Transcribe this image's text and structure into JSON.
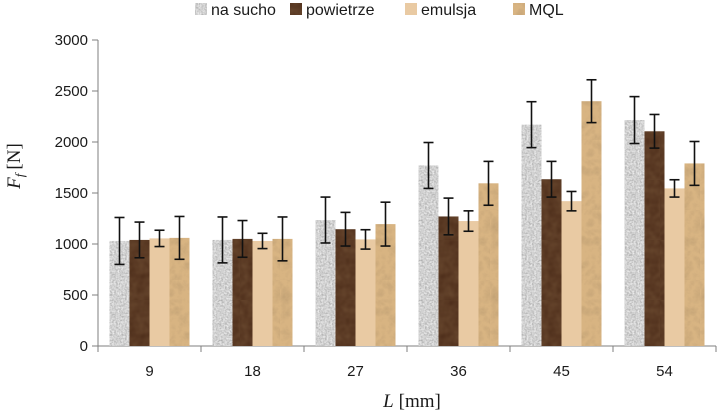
{
  "chart_data": {
    "type": "bar",
    "xlabel_var": "L",
    "xlabel_unit": "[mm]",
    "ylabel_var": "F",
    "ylabel_sub": "f",
    "ylabel_unit": "[N]",
    "ylim": [
      0,
      3000
    ],
    "yticks": [
      0,
      500,
      1000,
      1500,
      2000,
      2500,
      3000
    ],
    "categories": [
      "9",
      "18",
      "27",
      "36",
      "45",
      "54"
    ],
    "legend_position": "top",
    "series": [
      {
        "name": "na sucho",
        "color": "#b9b9b9",
        "pattern": "granite",
        "values": [
          1030,
          1040,
          1235,
          1770,
          2170,
          2215
        ],
        "errors": [
          230,
          225,
          225,
          225,
          225,
          230
        ]
      },
      {
        "name": "powietrze",
        "color": "#4a2a18",
        "pattern": "dark",
        "values": [
          1040,
          1050,
          1145,
          1270,
          1635,
          2105
        ],
        "errors": [
          175,
          180,
          165,
          180,
          175,
          165
        ]
      },
      {
        "name": "emulsja",
        "color": "#e8c9a2",
        "pattern": "flat",
        "values": [
          1055,
          1030,
          1045,
          1225,
          1420,
          1545
        ],
        "errors": [
          80,
          75,
          95,
          100,
          95,
          85
        ]
      },
      {
        "name": "MQL",
        "color": "#cfa776",
        "pattern": "crumpled",
        "values": [
          1060,
          1050,
          1195,
          1595,
          2400,
          1790
        ],
        "errors": [
          210,
          215,
          215,
          215,
          210,
          215
        ]
      }
    ]
  }
}
